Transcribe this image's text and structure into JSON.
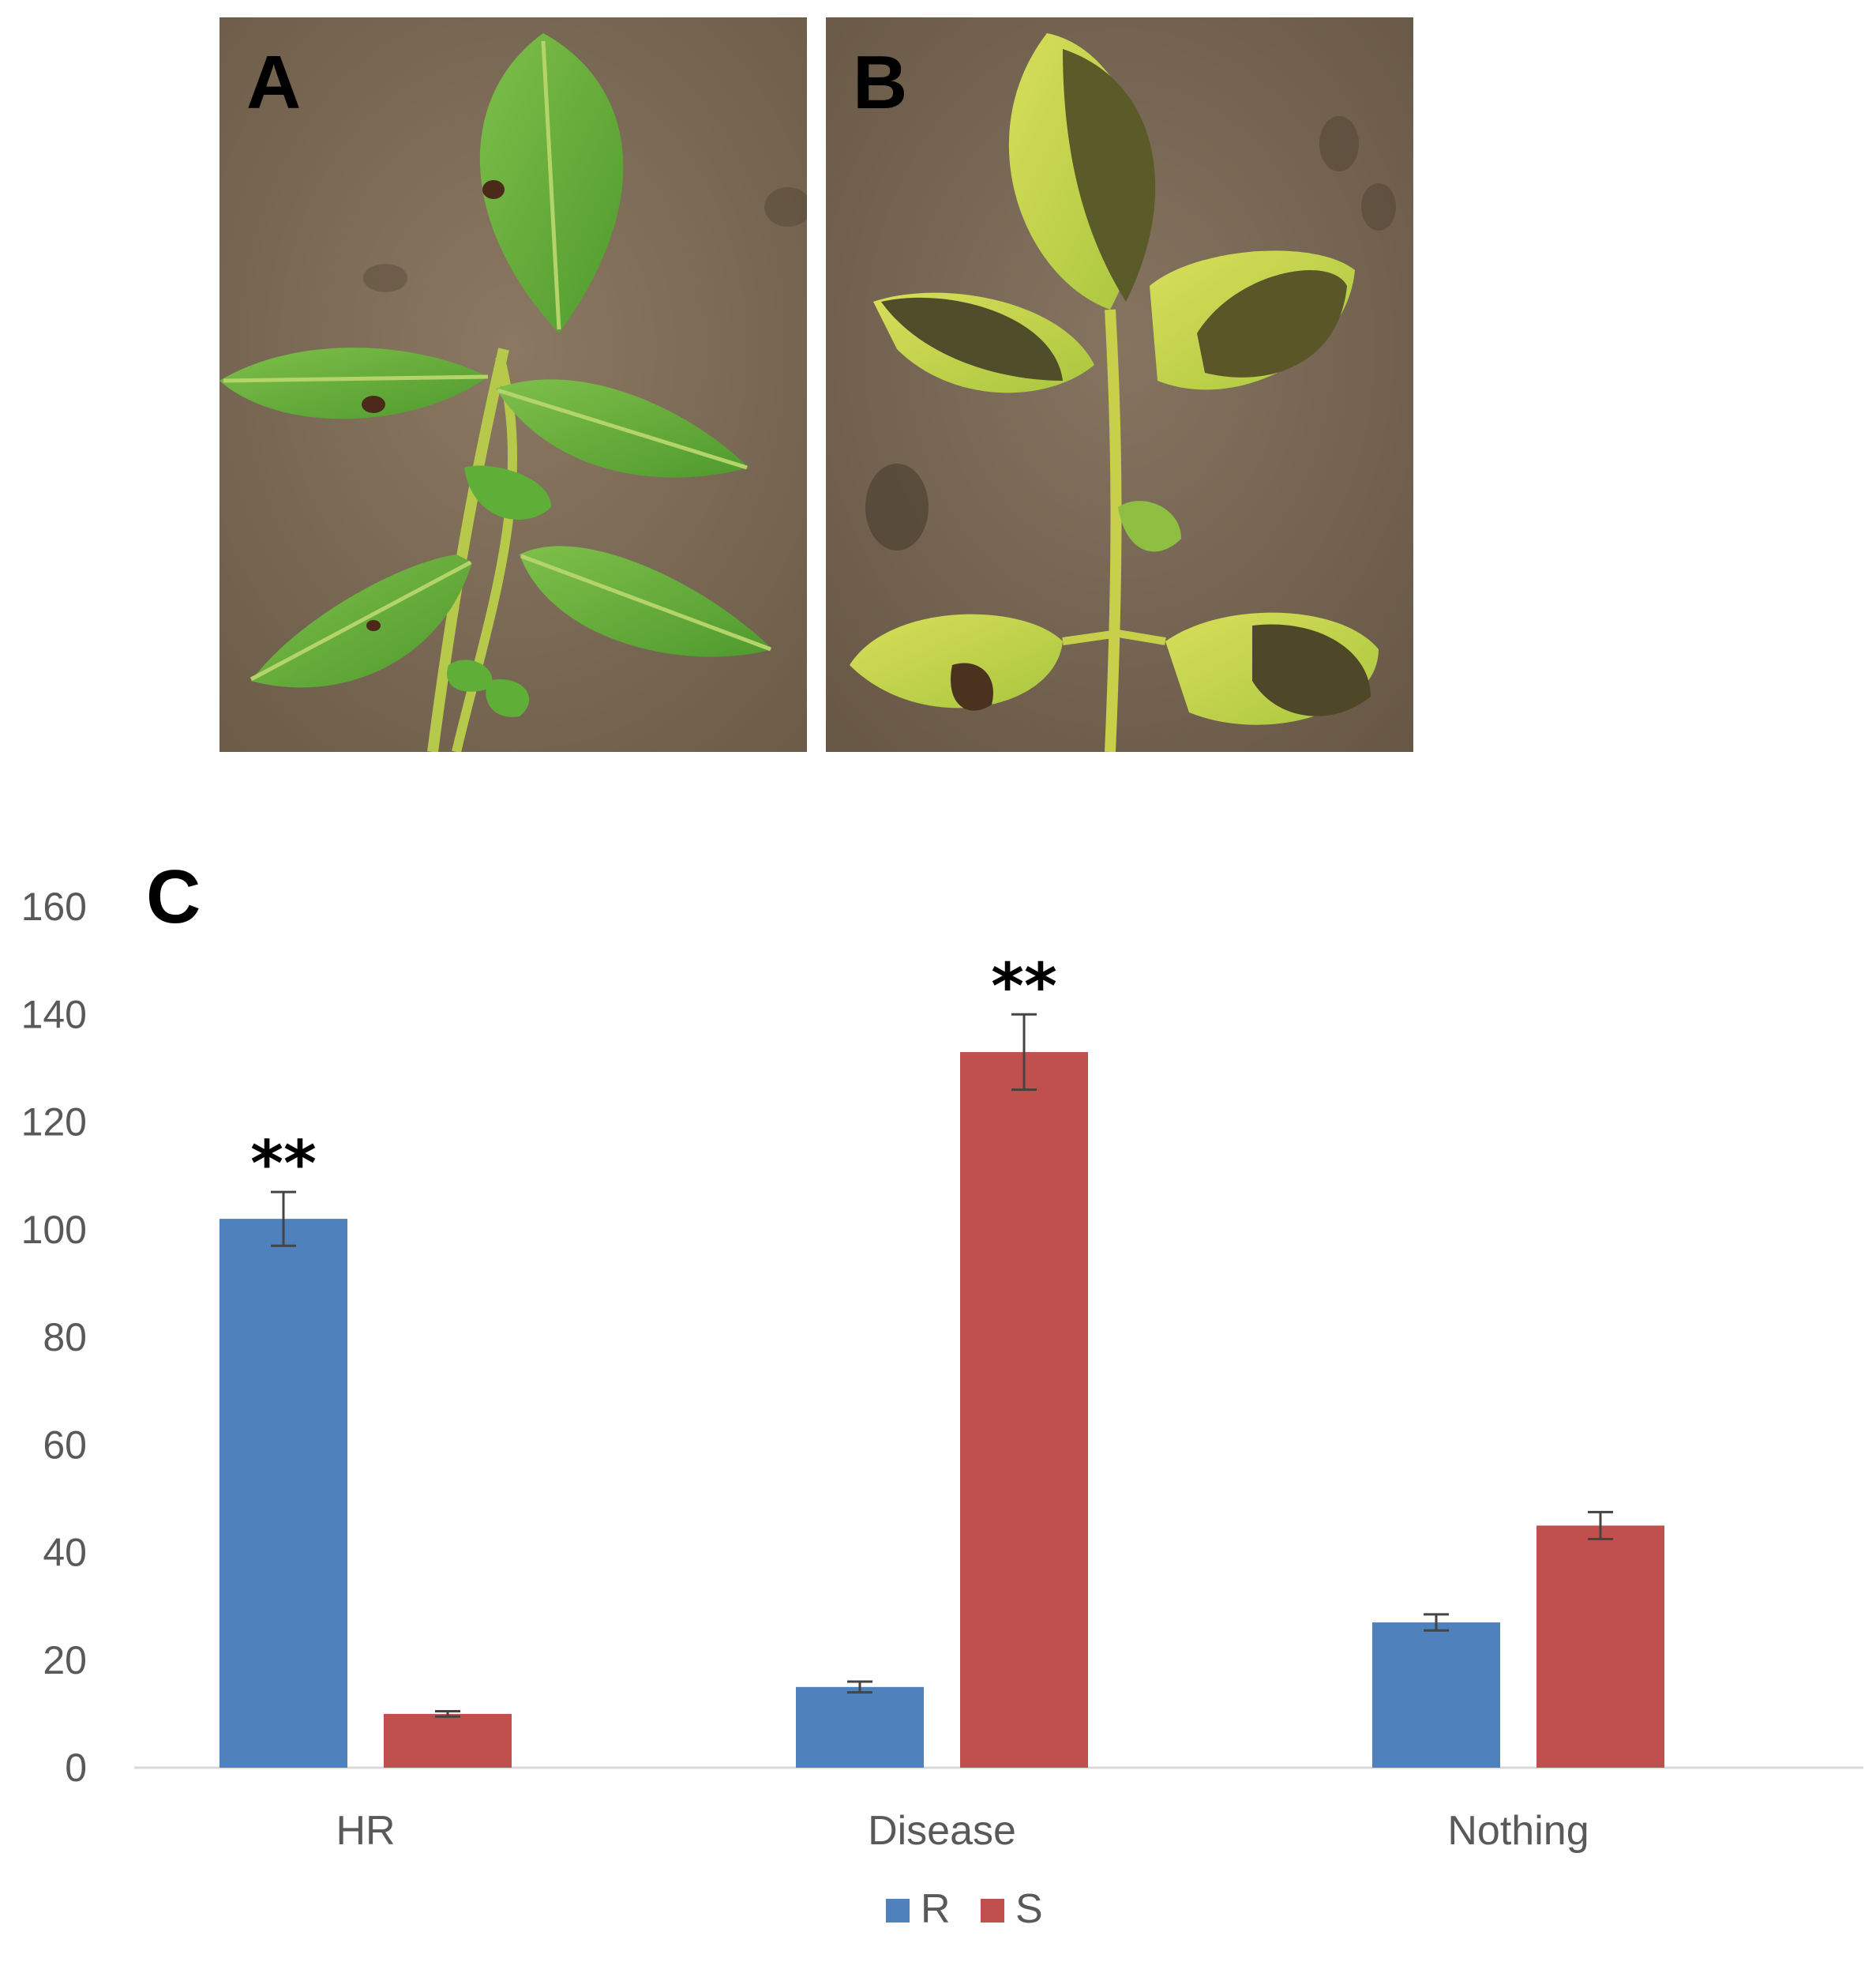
{
  "panels": {
    "a": {
      "label": "A"
    },
    "b": {
      "label": "B"
    },
    "c": {
      "label": "C"
    }
  },
  "colors": {
    "R": "#4F81BD",
    "S": "#C0504D",
    "background": "#7a6a56"
  },
  "chart_data": {
    "type": "bar",
    "title": "",
    "xlabel": "",
    "ylabel": "",
    "categories": [
      "HR",
      "Disease",
      "Nothing"
    ],
    "series": [
      {
        "name": "R",
        "values": [
          102,
          15,
          27
        ],
        "errors": [
          5,
          1,
          1.5
        ]
      },
      {
        "name": "S",
        "values": [
          10,
          133,
          45
        ],
        "errors": [
          0.5,
          7,
          2.5
        ]
      }
    ],
    "ylim": [
      0,
      160
    ],
    "yticks": [
      0,
      20,
      40,
      60,
      80,
      100,
      120,
      140,
      160
    ],
    "significance": [
      {
        "category": "HR",
        "series": "R",
        "label": "**"
      },
      {
        "category": "Disease",
        "series": "S",
        "label": "**"
      }
    ],
    "grid": false,
    "legend": "bottom"
  }
}
